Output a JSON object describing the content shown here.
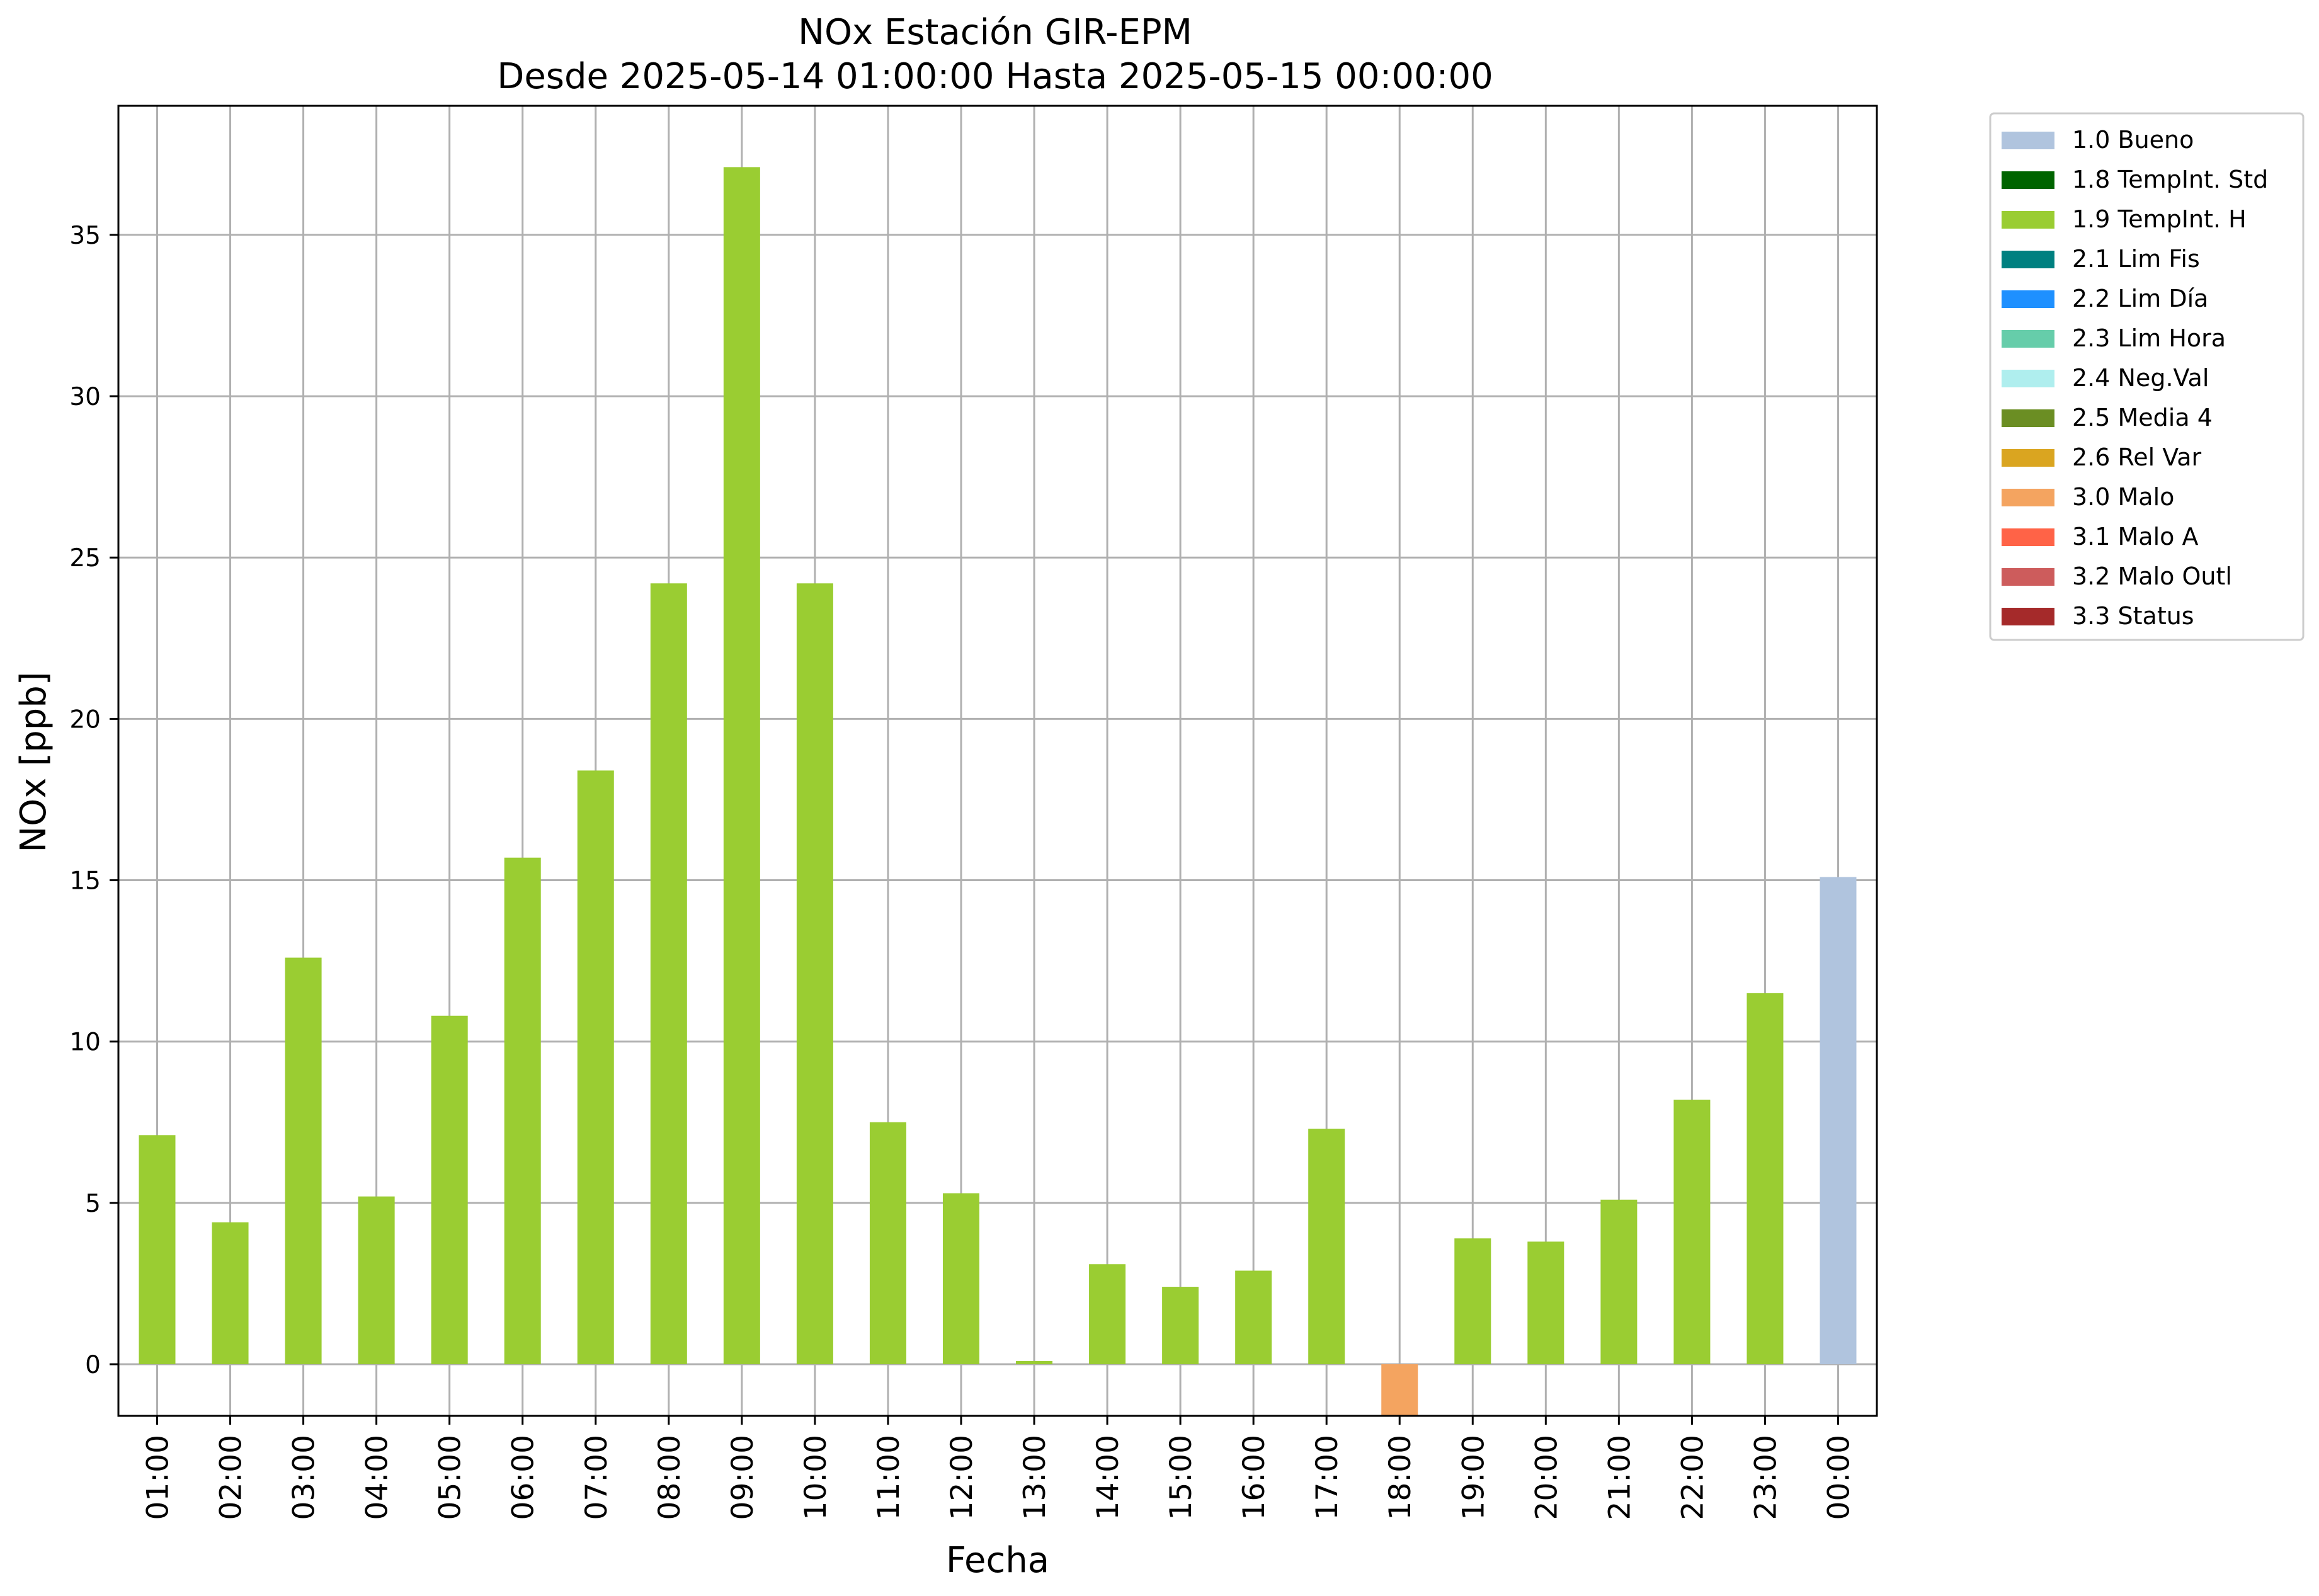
{
  "chart_data": {
    "type": "bar",
    "title_line1": "NOx Estación GIR-EPM",
    "title_line2": "Desde 2025-05-14 01:00:00 Hasta 2025-05-15 00:00:00",
    "xlabel": "Fecha",
    "ylabel": "NOx [ppb]",
    "ylim": [
      -1.6,
      39.0
    ],
    "yticks": [
      0,
      5,
      10,
      15,
      20,
      25,
      30,
      35
    ],
    "grid": true,
    "legend_position": "outside-top-right",
    "categories": [
      "01:00",
      "02:00",
      "03:00",
      "04:00",
      "05:00",
      "06:00",
      "07:00",
      "08:00",
      "09:00",
      "10:00",
      "11:00",
      "12:00",
      "13:00",
      "14:00",
      "15:00",
      "16:00",
      "17:00",
      "18:00",
      "19:00",
      "20:00",
      "21:00",
      "22:00",
      "23:00",
      "00:00"
    ],
    "values": [
      7.1,
      4.4,
      12.6,
      5.2,
      10.8,
      15.7,
      18.4,
      24.2,
      37.1,
      24.2,
      7.5,
      5.3,
      0.1,
      3.1,
      2.4,
      2.9,
      7.3,
      -1.6,
      3.9,
      3.8,
      5.1,
      8.2,
      11.5,
      15.1
    ],
    "flags": [
      "1.9 TempInt. H",
      "1.9 TempInt. H",
      "1.9 TempInt. H",
      "1.9 TempInt. H",
      "1.9 TempInt. H",
      "1.9 TempInt. H",
      "1.9 TempInt. H",
      "1.9 TempInt. H",
      "1.9 TempInt. H",
      "1.9 TempInt. H",
      "1.9 TempInt. H",
      "1.9 TempInt. H",
      "1.9 TempInt. H",
      "1.9 TempInt. H",
      "1.9 TempInt. H",
      "1.9 TempInt. H",
      "1.9 TempInt. H",
      "3.0 Malo",
      "1.9 TempInt. H",
      "1.9 TempInt. H",
      "1.9 TempInt. H",
      "1.9 TempInt. H",
      "1.9 TempInt. H",
      "1.0 Bueno"
    ],
    "legend": [
      {
        "label": "1.0 Bueno",
        "color": "#b0c4de"
      },
      {
        "label": "1.8 TempInt. Std",
        "color": "#006400"
      },
      {
        "label": "1.9 TempInt. H",
        "color": "#9acd32"
      },
      {
        "label": "2.1 Lim Fis",
        "color": "#008080"
      },
      {
        "label": "2.2 Lim Día",
        "color": "#1e90ff"
      },
      {
        "label": "2.3 Lim Hora",
        "color": "#66cdaa"
      },
      {
        "label": "2.4 Neg.Val",
        "color": "#afeeee"
      },
      {
        "label": "2.5 Media 4",
        "color": "#6b8e23"
      },
      {
        "label": "2.6 Rel Var",
        "color": "#daa520"
      },
      {
        "label": "3.0 Malo",
        "color": "#f4a460"
      },
      {
        "label": "3.1 Malo A",
        "color": "#ff6347"
      },
      {
        "label": "3.2 Malo Outl",
        "color": "#cd5c5c"
      },
      {
        "label": "3.3 Status",
        "color": "#a52a2a"
      }
    ]
  }
}
